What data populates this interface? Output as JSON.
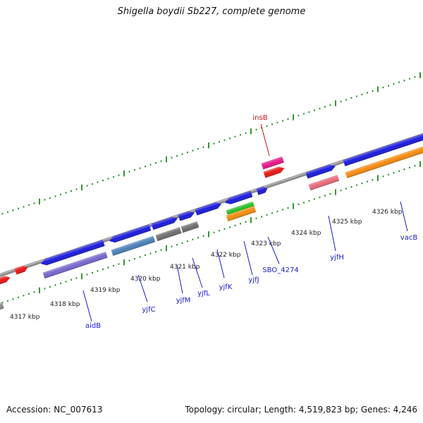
{
  "title": "Shigella boydii Sb227, complete genome",
  "footer": {
    "accession": "Accession: NC_007613",
    "summary": "Topology: circular; Length: 4,519,823 bp; Genes: 4,246"
  },
  "colors": {
    "backbone": "#8a8a8a",
    "tick": "#1f8a1f",
    "cds_forward": "#1a1adb",
    "cds_reverse": "#7766cc",
    "cds_grey": "#6e6e6e",
    "cds_steel": "#4a80b8",
    "mobile_element": "#e8148a",
    "rrna": "#e81414",
    "pseudo": "#e86a7a",
    "orange": "#f58a0f",
    "green": "#22bb22",
    "gene_label": "#1a1acc",
    "mobile_label": "#cc1111"
  },
  "scale_labels": [
    {
      "text": "4317 kbp"
    },
    {
      "text": "4318 kbp"
    },
    {
      "text": "4319 kbp"
    },
    {
      "text": "4320 kbp"
    },
    {
      "text": "4321 kbp"
    },
    {
      "text": "4322 kbp"
    },
    {
      "text": "4323 kbp"
    },
    {
      "text": "4324 kbp"
    },
    {
      "text": "4325 kbp"
    },
    {
      "text": "4326 kbp"
    }
  ],
  "gene_labels": [
    {
      "text": "aidB",
      "kind": "gene"
    },
    {
      "text": "yjfC",
      "kind": "gene"
    },
    {
      "text": "yjfM",
      "kind": "gene"
    },
    {
      "text": "yjfL",
      "kind": "gene"
    },
    {
      "text": "yjfK",
      "kind": "gene"
    },
    {
      "text": "yjfJ",
      "kind": "gene"
    },
    {
      "text": "SBO_4274",
      "kind": "gene"
    },
    {
      "text": "yjfH",
      "kind": "gene"
    },
    {
      "text": "vacB",
      "kind": "gene"
    },
    {
      "text": "insB",
      "kind": "mobile"
    }
  ]
}
